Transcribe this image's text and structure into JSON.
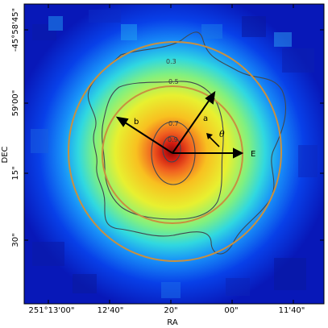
{
  "figure": {
    "xlabel": "RA",
    "ylabel": "DEC",
    "x_ticks": [
      "251°13'00\"",
      "12'40\"",
      "20\"",
      "00\"",
      "11'40\""
    ],
    "y_ticks": [
      "-45°58'45\"",
      "59'00\"",
      "15\"",
      "30\""
    ],
    "contour_levels": [
      "0.3",
      "0.5",
      "0.7",
      "0.9"
    ],
    "annotations": {
      "major_axis": "a",
      "minor_axis": "b",
      "east": "E",
      "angle": "θ"
    },
    "colors": {
      "ellipse": "#c89040",
      "contour": "#404850",
      "arrow": "#000000",
      "colormap_low": "#0a10b0",
      "colormap_high": "#a01010"
    }
  }
}
